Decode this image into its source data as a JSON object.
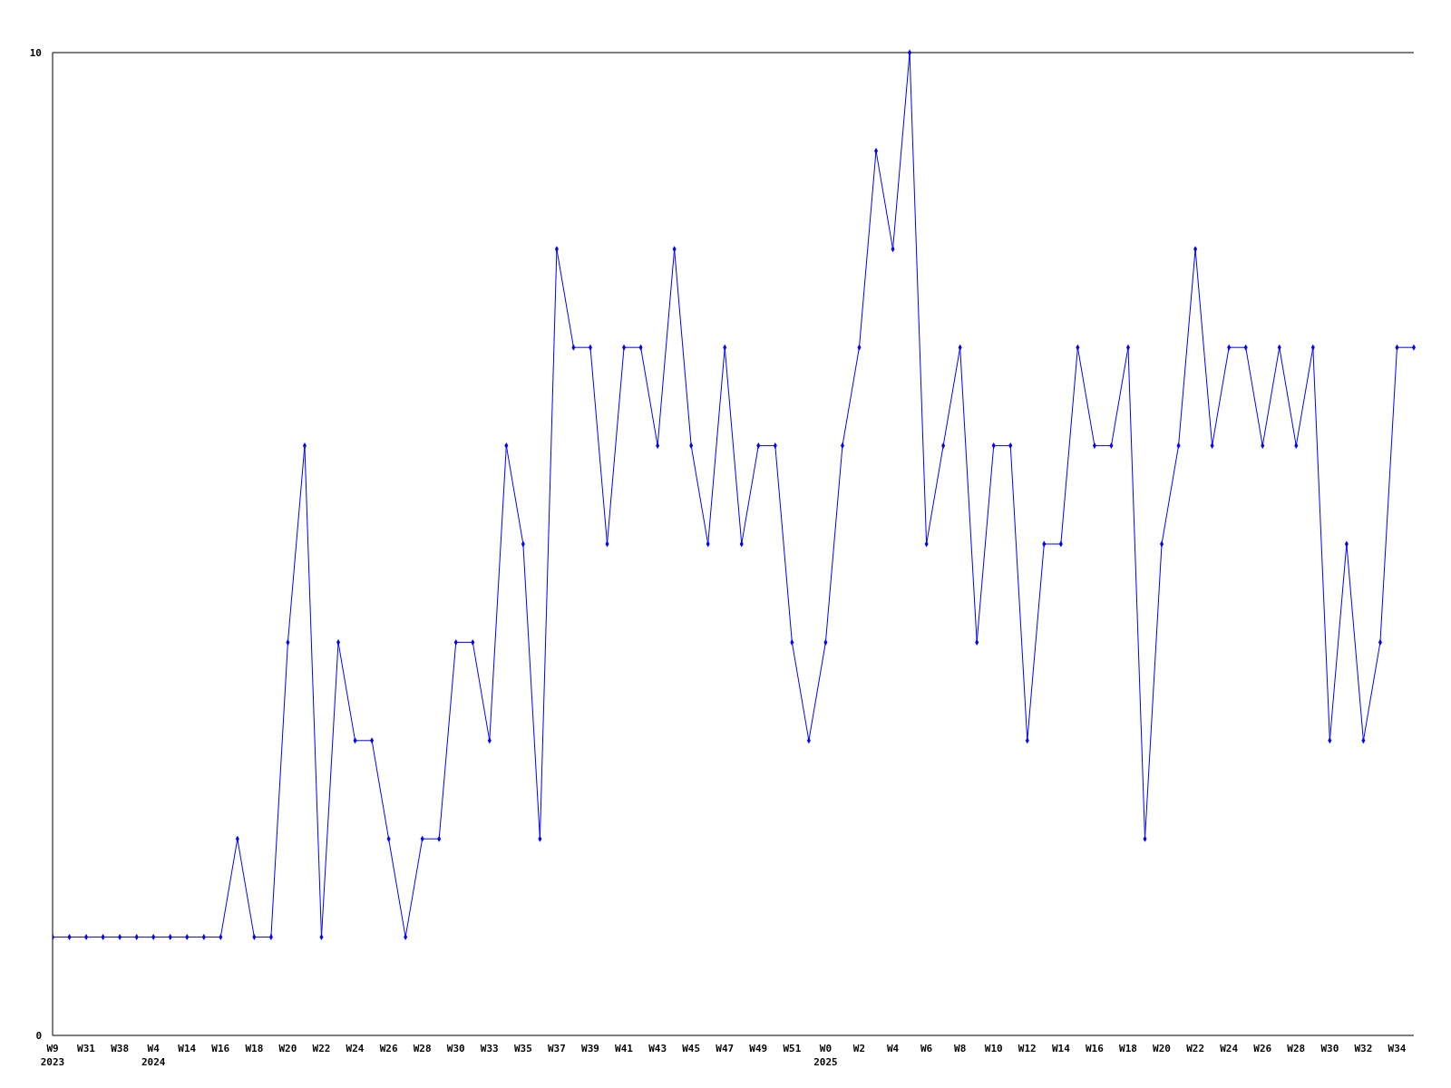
{
  "chart_data": {
    "type": "line",
    "categories": [
      "W9\n2023",
      null,
      "W31",
      null,
      "W38",
      null,
      "W4\n2024",
      null,
      "W14",
      null,
      "W16",
      null,
      "W18",
      null,
      "W20",
      null,
      "W22",
      null,
      "W24",
      null,
      "W26",
      null,
      "W28",
      null,
      "W30",
      null,
      "W33",
      null,
      "W35",
      null,
      "W37",
      null,
      "W39",
      null,
      "W41",
      null,
      "W43",
      null,
      "W45",
      null,
      "W47",
      null,
      "W49",
      null,
      "W51",
      null,
      "W0\n2025",
      null,
      "W2",
      null,
      "W4",
      null,
      "W6",
      null,
      "W8",
      null,
      "W10",
      null,
      "W12",
      null,
      "W14",
      null,
      "W16",
      null,
      "W18",
      null,
      "W20",
      null,
      "W22",
      null,
      "W24",
      null,
      "W26",
      null,
      "W28",
      null,
      "W30",
      null,
      "W32",
      null,
      "W34",
      null
    ],
    "series": [
      {
        "color": "#0000ff",
        "values": [
          1,
          1,
          1,
          1,
          1,
          1,
          1,
          1,
          1,
          1,
          1,
          2,
          1,
          1,
          4,
          6,
          1,
          4,
          3,
          3,
          2,
          1,
          2,
          2,
          4,
          4,
          3,
          6,
          5,
          2,
          8,
          7,
          7,
          5,
          7,
          7,
          6,
          8,
          6,
          5,
          7,
          5,
          6,
          6,
          4,
          3,
          4,
          6,
          7,
          9,
          8,
          10,
          5,
          6,
          7,
          4,
          6,
          6,
          3,
          5,
          5,
          7,
          6,
          6,
          7,
          2,
          5,
          6,
          8,
          6,
          7,
          7,
          6,
          7,
          6,
          7,
          3,
          5,
          3,
          4,
          7,
          7
        ]
      }
    ],
    "ylim": [
      0,
      10
    ],
    "yticks": [
      0,
      10
    ],
    "grid": false,
    "marker": "diamond",
    "line_style": "solid"
  }
}
